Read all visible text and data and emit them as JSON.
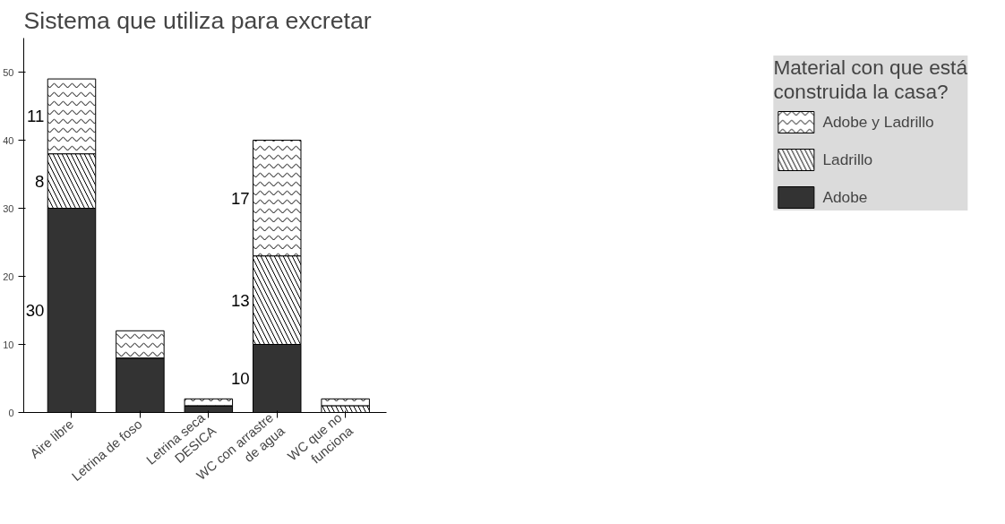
{
  "chart_data": {
    "type": "bar",
    "title": "Sistema que utiliza para excretar",
    "legend_title": "Material con que está\nconstruida la casa?",
    "categories": [
      "Aire libre",
      "Letrina de foso",
      "Letrina seca\nDESICA",
      "WC con arrastre\nde agua",
      "WC que no\nfunciona"
    ],
    "stacked": true,
    "ylim": [
      0,
      55
    ],
    "yticks": [
      0,
      10,
      20,
      30,
      40,
      50
    ],
    "grid": false,
    "legend": "right",
    "series": [
      {
        "name": "Adobe",
        "color": "#333333",
        "values": [
          30,
          8,
          1,
          10,
          0
        ],
        "value_labels": [
          "30",
          null,
          null,
          "10",
          null
        ]
      },
      {
        "name": "Ladrillo",
        "color": "#ffffff",
        "values": [
          8,
          0,
          0,
          13,
          1
        ],
        "value_labels": [
          "8",
          null,
          null,
          "13",
          null
        ]
      },
      {
        "name": "Adobe y Ladrillo",
        "color": "#ffffff",
        "values": [
          11,
          4,
          1,
          17,
          1
        ],
        "value_labels": [
          "11",
          null,
          null,
          "17",
          null
        ]
      }
    ]
  }
}
